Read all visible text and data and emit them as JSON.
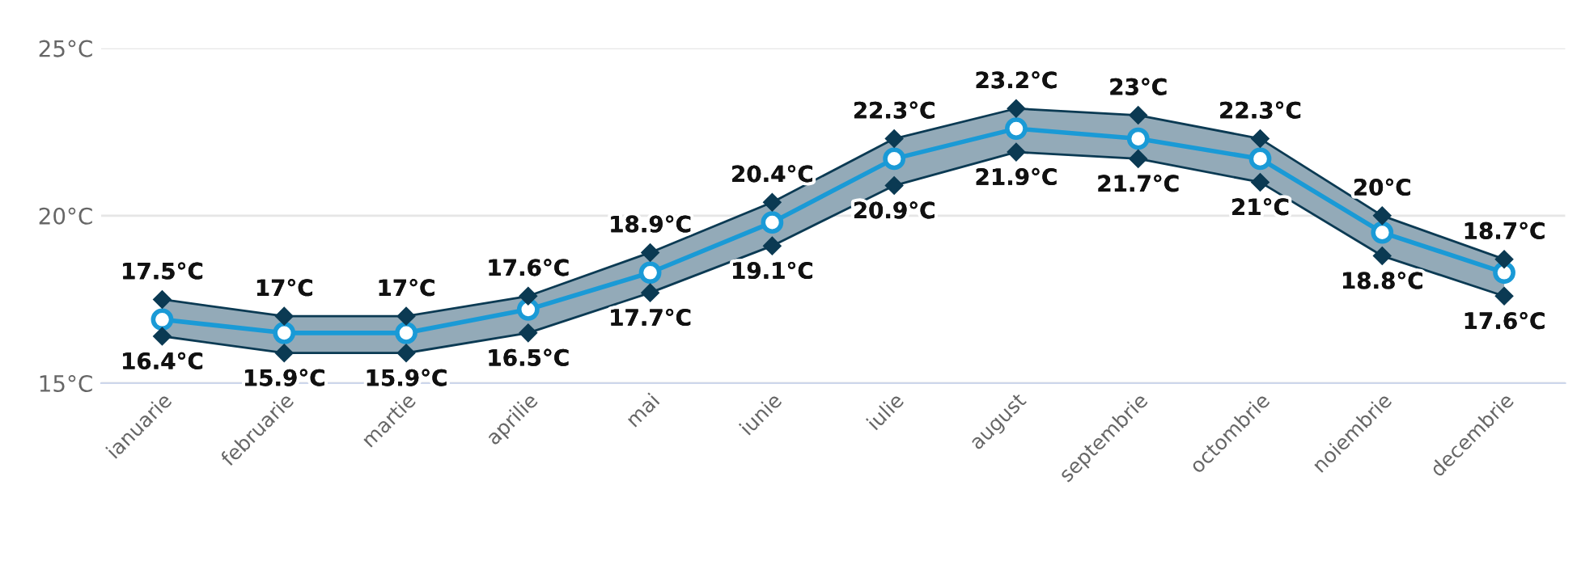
{
  "chart_data": {
    "type": "line",
    "categories": [
      "ianuarie",
      "februarie",
      "martie",
      "aprilie",
      "mai",
      "iunie",
      "iulie",
      "august",
      "septembrie",
      "octombrie",
      "noiembrie",
      "decembrie"
    ],
    "series": [
      {
        "color": "#1a9ad6",
        "marker": "circle",
        "values": [
          16.9,
          16.5,
          16.5,
          17.2,
          18.3,
          19.8,
          21.7,
          22.6,
          22.3,
          21.7,
          19.5,
          18.3
        ],
        "lower": [
          16.4,
          15.9,
          15.9,
          16.5,
          17.7,
          19.1,
          20.9,
          21.9,
          21.7,
          21,
          18.8,
          17.6
        ],
        "upper": [
          17.5,
          17,
          17,
          17.6,
          18.9,
          20.4,
          22.3,
          23.2,
          23,
          22.3,
          20,
          18.7
        ]
      },
      {
        "color": "#0b3a53",
        "marker": "diamond",
        "values": [
          17.5,
          17,
          17,
          17.6,
          18.9,
          20.4,
          22.3,
          23.2,
          23,
          22.3,
          20,
          18.7
        ],
        "value_labels": [
          "17.5°C",
          "17°C",
          "17°C",
          "17.6°C",
          "18.9°C",
          "20.4°C",
          "22.3°C",
          "23.2°C",
          "23°C",
          "22.3°C",
          "20°C",
          "18.7°C"
        ]
      },
      {
        "color": "#0b3a53",
        "marker": "diamond",
        "values": [
          16.4,
          15.9,
          15.9,
          16.5,
          17.7,
          19.1,
          20.9,
          21.9,
          21.7,
          21,
          18.8,
          17.6
        ],
        "value_labels": [
          "16.4°C",
          "15.9°C",
          "15.9°C",
          "16.5°C",
          "17.7°C",
          "19.1°C",
          "20.9°C",
          "21.9°C",
          "21.7°C",
          "21°C",
          "18.8°C",
          "17.6°C"
        ]
      }
    ],
    "ylim": [
      15,
      25
    ],
    "yticks": [
      {
        "value": 15,
        "label": "15°C"
      },
      {
        "value": 20,
        "label": "20°C"
      },
      {
        "value": 25,
        "label": "25°C"
      }
    ],
    "grid": "y",
    "legend": false
  }
}
